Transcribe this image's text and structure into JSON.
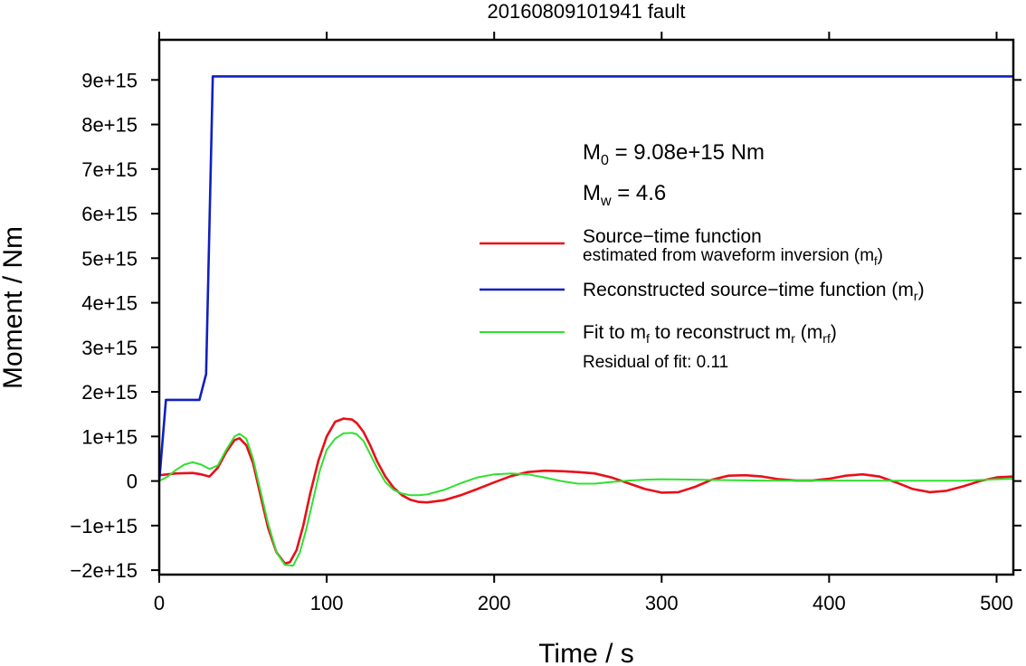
{
  "chart_data": {
    "type": "line",
    "title": "20160809101941 fault",
    "xlabel": "Time / s",
    "ylabel": "Moment / Nm",
    "xlim": [
      0,
      510
    ],
    "ylim": [
      -2100000000000000.0,
      9900000000000000.0
    ],
    "x_ticks": [
      0,
      100,
      200,
      300,
      400,
      500
    ],
    "x_tick_labels": [
      "0",
      "100",
      "200",
      "300",
      "400",
      "500"
    ],
    "y_ticks": [
      -2000000000000000.0,
      -1000000000000000.0,
      0,
      1000000000000000.0,
      2000000000000000.0,
      3000000000000000.0,
      4000000000000000.0,
      5000000000000000.0,
      6000000000000000.0,
      7000000000000000.0,
      8000000000000000.0,
      9000000000000000.0
    ],
    "y_tick_labels": [
      "−2e+15",
      "−1e+15",
      "0",
      "1e+15",
      "2e+15",
      "3e+15",
      "4e+15",
      "5e+15",
      "6e+15",
      "7e+15",
      "8e+15",
      "9e+15"
    ],
    "grid": false,
    "annotations": {
      "m0": {
        "symbol": "M",
        "sub": "0",
        "text": " = 9.08e+15 Nm"
      },
      "mw": {
        "symbol": "M",
        "sub": "w",
        "text": " = 4.6"
      },
      "residual": "Residual of fit: 0.11"
    },
    "legend": {
      "placement": "right",
      "entries": [
        {
          "line1": "Source−time function",
          "line2": "estimated from waveform inversion (m",
          "sub": "f",
          "tail": ")",
          "color": "#e8101a"
        },
        {
          "line1": "Reconstructed source−time function (m",
          "sub": "r",
          "tail": ")",
          "color": "#1020c0"
        },
        {
          "line1a": "Fit to m",
          "sub1": "f",
          "line1b": " to reconstruct m",
          "line1c": "r",
          "line1d": " (m",
          "sub2": "rf",
          "tail": ")",
          "color": "#30e030"
        }
      ]
    },
    "series": [
      {
        "name": "Source−time function estimated from waveform inversion (mf)",
        "color": "#e8101a",
        "x": [
          0,
          10,
          20,
          25,
          30,
          35,
          40,
          45,
          48,
          52,
          56,
          60,
          65,
          70,
          75,
          78,
          82,
          86,
          90,
          95,
          100,
          105,
          110,
          115,
          118,
          122,
          126,
          130,
          135,
          140,
          145,
          150,
          155,
          160,
          170,
          180,
          190,
          200,
          210,
          220,
          230,
          240,
          250,
          260,
          270,
          280,
          290,
          300,
          310,
          320,
          330,
          340,
          350,
          360,
          370,
          380,
          390,
          400,
          410,
          420,
          430,
          440,
          450,
          460,
          470,
          480,
          490,
          500,
          510
        ],
        "y": [
          130000000000000.0,
          170000000000000.0,
          180000000000000.0,
          150000000000000.0,
          100000000000000.0,
          300000000000000.0,
          650000000000000.0,
          920000000000000.0,
          960000000000000.0,
          800000000000000.0,
          400000000000000.0,
          -250000000000000.0,
          -1050000000000000.0,
          -1600000000000000.0,
          -1850000000000000.0,
          -1820000000000000.0,
          -1550000000000000.0,
          -1000000000000000.0,
          -300000000000000.0,
          450000000000000.0,
          1000000000000000.0,
          1330000000000000.0,
          1400000000000000.0,
          1380000000000000.0,
          1300000000000000.0,
          1100000000000000.0,
          800000000000000.0,
          450000000000000.0,
          100000000000000.0,
          -150000000000000.0,
          -320000000000000.0,
          -420000000000000.0,
          -470000000000000.0,
          -480000000000000.0,
          -430000000000000.0,
          -320000000000000.0,
          -180000000000000.0,
          -30000000000000.0,
          110000000000000.0,
          200000000000000.0,
          230000000000000.0,
          220000000000000.0,
          200000000000000.0,
          170000000000000.0,
          80000000000000.0,
          -50000000000000.0,
          -180000000000000.0,
          -260000000000000.0,
          -250000000000000.0,
          -130000000000000.0,
          30000000000000.0,
          120000000000000.0,
          130000000000000.0,
          100000000000000.0,
          40000000000000.0,
          10000000000000.0,
          10000000000000.0,
          50000000000000.0,
          120000000000000.0,
          150000000000000.0,
          100000000000000.0,
          -30000000000000.0,
          -180000000000000.0,
          -250000000000000.0,
          -220000000000000.0,
          -120000000000000.0,
          0,
          80000000000000.0,
          100000000000000.0
        ]
      },
      {
        "name": "Reconstructed source−time function (mr)",
        "color": "#1020c0",
        "x": [
          0,
          4,
          24,
          28,
          32,
          510
        ],
        "y": [
          0,
          1820000000000000.0,
          1820000000000000.0,
          2400000000000000.0,
          9080000000000000.0,
          9080000000000000.0
        ]
      },
      {
        "name": "Fit to mf to reconstruct mr (mrf)",
        "color": "#30e030",
        "x": [
          0,
          5,
          10,
          15,
          20,
          25,
          30,
          35,
          40,
          45,
          48,
          52,
          56,
          60,
          65,
          70,
          75,
          80,
          84,
          88,
          92,
          96,
          100,
          105,
          110,
          115,
          118,
          122,
          126,
          130,
          135,
          140,
          145,
          150,
          155,
          160,
          170,
          180,
          190,
          200,
          210,
          220,
          230,
          240,
          250,
          260,
          270,
          280,
          290,
          300,
          320,
          340,
          360,
          380,
          400,
          420,
          440,
          460,
          480,
          500,
          510
        ],
        "y": [
          0,
          100000000000000.0,
          250000000000000.0,
          370000000000000.0,
          420000000000000.0,
          370000000000000.0,
          270000000000000.0,
          350000000000000.0,
          700000000000000.0,
          1000000000000000.0,
          1060000000000000.0,
          950000000000000.0,
          500000000000000.0,
          -150000000000000.0,
          -950000000000000.0,
          -1600000000000000.0,
          -1880000000000000.0,
          -1900000000000000.0,
          -1600000000000000.0,
          -1050000000000000.0,
          -400000000000000.0,
          250000000000000.0,
          700000000000000.0,
          950000000000000.0,
          1070000000000000.0,
          1080000000000000.0,
          1050000000000000.0,
          900000000000000.0,
          600000000000000.0,
          300000000000000.0,
          -20000000000000.0,
          -200000000000000.0,
          -280000000000000.0,
          -320000000000000.0,
          -320000000000000.0,
          -300000000000000.0,
          -200000000000000.0,
          -50000000000000.0,
          80000000000000.0,
          150000000000000.0,
          170000000000000.0,
          150000000000000.0,
          80000000000000.0,
          0,
          -60000000000000.0,
          -60000000000000.0,
          -20000000000000.0,
          10000000000000.0,
          30000000000000.0,
          40000000000000.0,
          30000000000000.0,
          20000000000000.0,
          10000000000000.0,
          10000000000000.0,
          10000000000000.0,
          10000000000000.0,
          5000000000000.0,
          5000000000000.0,
          5000000000000.0,
          40000000000000.0,
          50000000000000.0
        ]
      }
    ]
  }
}
